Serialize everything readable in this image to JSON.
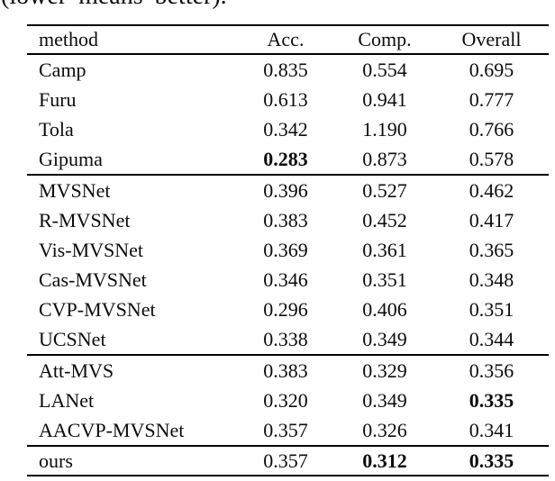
{
  "caption_fragment": "(lower means better).",
  "table": {
    "columns": [
      "method",
      "Acc.",
      "Comp.",
      "Overall"
    ],
    "groups": [
      {
        "rows": [
          {
            "method": "Camp",
            "acc": "0.835",
            "comp": "0.554",
            "overall": "0.695",
            "bold": []
          },
          {
            "method": "Furu",
            "acc": "0.613",
            "comp": "0.941",
            "overall": "0.777",
            "bold": []
          },
          {
            "method": "Tola",
            "acc": "0.342",
            "comp": "1.190",
            "overall": "0.766",
            "bold": []
          },
          {
            "method": "Gipuma",
            "acc": "0.283",
            "comp": "0.873",
            "overall": "0.578",
            "bold": [
              "acc"
            ]
          }
        ]
      },
      {
        "rows": [
          {
            "method": "MVSNet",
            "acc": "0.396",
            "comp": "0.527",
            "overall": "0.462",
            "bold": []
          },
          {
            "method": "R-MVSNet",
            "acc": "0.383",
            "comp": "0.452",
            "overall": "0.417",
            "bold": []
          },
          {
            "method": "Vis-MVSNet",
            "acc": "0.369",
            "comp": "0.361",
            "overall": "0.365",
            "bold": []
          },
          {
            "method": "Cas-MVSNet",
            "acc": "0.346",
            "comp": "0.351",
            "overall": "0.348",
            "bold": []
          },
          {
            "method": "CVP-MVSNet",
            "acc": "0.296",
            "comp": "0.406",
            "overall": "0.351",
            "bold": []
          },
          {
            "method": "UCSNet",
            "acc": "0.338",
            "comp": "0.349",
            "overall": "0.344",
            "bold": []
          }
        ]
      },
      {
        "rows": [
          {
            "method": "Att-MVS",
            "acc": "0.383",
            "comp": "0.329",
            "overall": "0.356",
            "bold": []
          },
          {
            "method": "LANet",
            "acc": "0.320",
            "comp": "0.349",
            "overall": "0.335",
            "bold": [
              "overall"
            ]
          },
          {
            "method": "AACVP-MVSNet",
            "acc": "0.357",
            "comp": "0.326",
            "overall": "0.341",
            "bold": []
          }
        ]
      },
      {
        "rows": [
          {
            "method": "ours",
            "acc": "0.357",
            "comp": "0.312",
            "overall": "0.335",
            "bold": [
              "comp",
              "overall"
            ]
          }
        ]
      }
    ]
  }
}
